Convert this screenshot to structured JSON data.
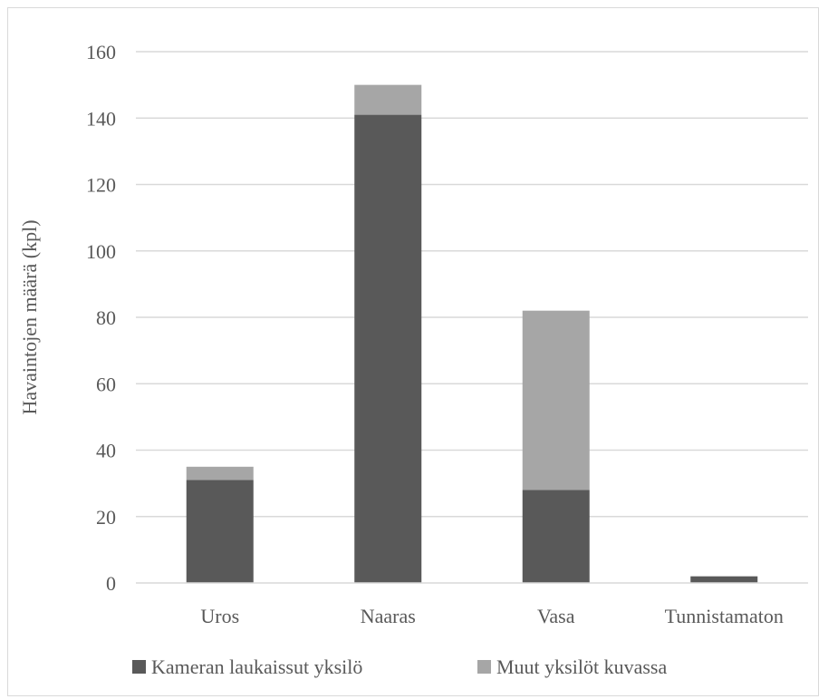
{
  "chart_data": {
    "type": "bar",
    "stacked": true,
    "title": "",
    "xlabel": "",
    "ylabel": "Havaintojen määrä (kpl)",
    "ylim": [
      0,
      160
    ],
    "yticks": [
      0,
      20,
      40,
      60,
      80,
      100,
      120,
      140,
      160
    ],
    "grid": true,
    "legend_position": "bottom",
    "categories": [
      "Uros",
      "Naaras",
      "Vasa",
      "Tunnistamaton"
    ],
    "series": [
      {
        "name": "Kameran laukaissut yksilö",
        "color": "#595959",
        "values": [
          31,
          141,
          28,
          2
        ]
      },
      {
        "name": "Muut yksilöt kuvassa",
        "color": "#a6a6a6",
        "values": [
          4,
          9,
          54,
          0
        ]
      }
    ]
  }
}
